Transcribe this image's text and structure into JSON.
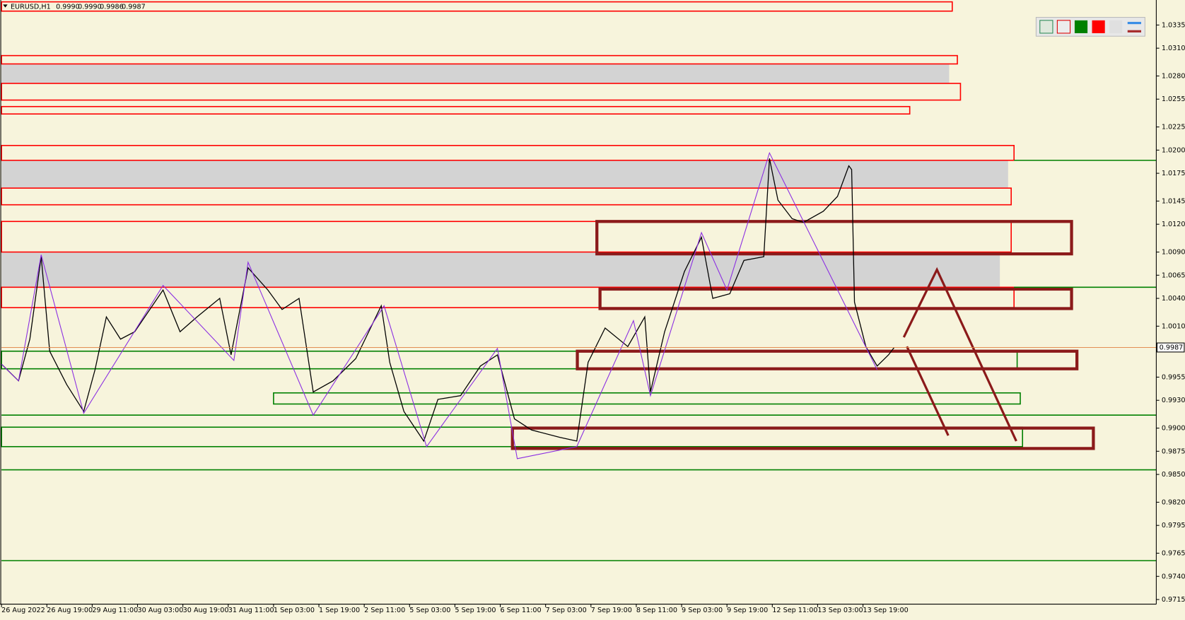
{
  "chart_data": {
    "type": "line",
    "symbol": "EURUSD,H1",
    "ohlc": [
      "0.9990",
      "0.9990",
      "0.9986",
      "0.9987"
    ],
    "xlim": [
      0,
      407.5
    ],
    "ylim": [
      0.971,
      1.0362
    ],
    "xticks": [
      {
        "value": 0,
        "label": "26 Aug 2022"
      },
      {
        "value": 16,
        "label": "26 Aug 19:00"
      },
      {
        "value": 32,
        "label": "29 Aug 11:00"
      },
      {
        "value": 48,
        "label": "30 Aug 03:00"
      },
      {
        "value": 64,
        "label": "30 Aug 19:00"
      },
      {
        "value": 80,
        "label": "31 Aug 11:00"
      },
      {
        "value": 96,
        "label": "1 Sep 03:00"
      },
      {
        "value": 112,
        "label": "1 Sep 19:00"
      },
      {
        "value": 128,
        "label": "2 Sep 11:00"
      },
      {
        "value": 144,
        "label": "5 Sep 03:00"
      },
      {
        "value": 160,
        "label": "5 Sep 19:00"
      },
      {
        "value": 176,
        "label": "6 Sep 11:00"
      },
      {
        "value": 192,
        "label": "7 Sep 03:00"
      },
      {
        "value": 208,
        "label": "7 Sep 19:00"
      },
      {
        "value": 224,
        "label": "8 Sep 11:00"
      },
      {
        "value": 240,
        "label": "9 Sep 03:00"
      },
      {
        "value": 256,
        "label": "9 Sep 19:00"
      },
      {
        "value": 272,
        "label": "12 Sep 11:00"
      },
      {
        "value": 288,
        "label": "13 Sep 03:00"
      },
      {
        "value": 304,
        "label": "13 Sep 19:00"
      }
    ],
    "yticks": [
      1.0335,
      {
        "value": 1.031,
        "label": "1.0310"
      },
      {
        "value": 1.028,
        "label": "1.0280"
      },
      1.0255,
      1.0225,
      {
        "value": 1.02,
        "label": "1.0200"
      },
      1.0175,
      1.0145,
      {
        "value": 1.012,
        "label": "1.0120"
      },
      {
        "value": 1.009,
        "label": "1.0090"
      },
      1.0065,
      {
        "value": 1.004,
        "label": "1.0040"
      },
      {
        "value": 1.001,
        "label": "1.0010"
      },
      0.9955,
      {
        "value": 0.993,
        "label": "0.9930"
      },
      {
        "value": 0.99,
        "label": "0.9900"
      },
      0.9875,
      {
        "value": 0.985,
        "label": "0.9850"
      },
      {
        "value": 0.982,
        "label": "0.9820"
      },
      0.9795,
      0.9765,
      {
        "value": 0.974,
        "label": "0.9740"
      },
      0.9715
    ],
    "last_price": 0.9987,
    "series": [
      {
        "color": "#000000",
        "x": [
          0,
          6,
          10,
          14,
          17,
          23,
          29,
          33,
          37,
          42,
          47,
          57,
          63,
          69,
          77,
          81,
          87,
          94,
          99,
          105,
          110,
          117,
          125,
          134,
          137,
          142,
          149,
          154,
          162,
          169,
          175,
          181,
          187,
          197,
          203,
          207,
          213,
          221,
          227,
          229,
          234,
          241,
          247,
          251,
          257,
          262,
          269,
          271,
          274,
          279,
          283,
          290,
          295,
          299,
          300,
          301,
          305,
          309,
          313,
          315
        ],
        "values": [
          0.9969,
          0.9951,
          0.9996,
          1.0085,
          0.9983,
          0.9947,
          0.9918,
          0.9963,
          1.002,
          0.9996,
          1.0004,
          1.0049,
          1.0004,
          1.002,
          1.004,
          0.9979,
          1.0073,
          1.0049,
          1.0028,
          1.004,
          0.9939,
          0.9951,
          0.9975,
          1.0032,
          0.9971,
          0.9918,
          0.9886,
          0.9931,
          0.9935,
          0.9967,
          0.9979,
          0.991,
          0.9898,
          0.989,
          0.9886,
          0.9971,
          1.0008,
          0.9988,
          1.002,
          0.9939,
          1.0004,
          1.0069,
          1.0106,
          1.004,
          1.0045,
          1.0081,
          1.0085,
          1.0191,
          1.0146,
          1.0126,
          1.0122,
          1.0134,
          1.015,
          1.0183,
          1.0179,
          1.0036,
          0.9988,
          0.9967,
          0.9979,
          0.9987
        ]
      },
      {
        "color": "#8a2be2",
        "x": [
          0,
          6,
          14,
          29,
          57,
          82,
          87,
          110,
          135,
          150,
          175,
          182,
          203,
          223,
          229,
          247,
          256,
          271,
          309
        ],
        "values": [
          0.9969,
          0.9951,
          1.0087,
          0.9916,
          1.0054,
          0.9973,
          1.0079,
          0.9914,
          1.0032,
          0.988,
          0.9986,
          0.9867,
          0.988,
          1.0016,
          0.9935,
          1.0111,
          1.0049,
          1.0197,
          0.9963
        ]
      }
    ],
    "zones": [
      {
        "style": "red",
        "x": [
          0,
          335.5
        ],
        "low": 1.035,
        "high": 1.036
      },
      {
        "style": "red",
        "x": [
          0,
          337.3
        ],
        "low": 1.0293,
        "high": 1.0302
      },
      {
        "style": "gray",
        "x": [
          0,
          334.4
        ],
        "low": 1.0272,
        "high": 1.0293
      },
      {
        "style": "red",
        "x": [
          0,
          338.4
        ],
        "low": 1.0254,
        "high": 1.0272
      },
      {
        "style": "red",
        "x": [
          0,
          320.5
        ],
        "low": 1.0239,
        "high": 1.0247
      },
      {
        "style": "red",
        "x": [
          0,
          357.3
        ],
        "low": 1.0189,
        "high": 1.0205
      },
      {
        "style": "gray",
        "x": [
          0,
          355.2
        ],
        "low": 1.0159,
        "high": 1.0189
      },
      {
        "style": "red",
        "x": [
          0,
          356.3
        ],
        "low": 1.0141,
        "high": 1.0159
      },
      {
        "style": "red",
        "x": [
          0,
          356.3
        ],
        "low": 1.009,
        "high": 1.0123
      },
      {
        "style": "gray",
        "x": [
          0,
          352.3
        ],
        "low": 1.0052,
        "high": 1.009
      },
      {
        "style": "red",
        "x": [
          0,
          357.3
        ],
        "low": 1.003,
        "high": 1.0052
      },
      {
        "style": "green",
        "x": [
          0,
          358.4
        ],
        "low": 0.9964,
        "high": 0.9983
      },
      {
        "style": "green",
        "x": [
          96,
          359.5
        ],
        "low": 0.9926,
        "high": 0.9938
      },
      {
        "style": "green",
        "x": [
          0,
          360.3
        ],
        "low": 0.988,
        "high": 0.9901
      },
      {
        "style": "maroon",
        "x": [
          210.1,
          377.6
        ],
        "low": 1.0088,
        "high": 1.0123
      },
      {
        "style": "maroon",
        "x": [
          211.2,
          377.6
        ],
        "low": 1.0029,
        "high": 1.005
      },
      {
        "style": "maroon",
        "x": [
          203.2,
          379.5
        ],
        "low": 0.9964,
        "high": 0.9983
      },
      {
        "style": "maroon",
        "x": [
          180.3,
          385.3
        ],
        "low": 0.9878,
        "high": 0.99
      }
    ],
    "levels": [
      {
        "value": 1.0189,
        "x": [
          357.3,
          407.5
        ]
      },
      {
        "value": 1.0052,
        "x": [
          357.3,
          407.5
        ]
      },
      {
        "value": 0.9914,
        "x": [
          0,
          407.5
        ]
      },
      {
        "value": 0.9855,
        "x": [
          0,
          407.5
        ]
      },
      {
        "value": 0.9757,
        "x": [
          0,
          407.5
        ]
      }
    ],
    "arrows": [
      {
        "x": [
          318.4,
          330.1,
          358.1
        ],
        "values": [
          0.9998,
          1.0071,
          0.9886
        ]
      },
      {
        "x": [
          319.5,
          334.1
        ],
        "values": [
          0.9988,
          0.9892
        ]
      }
    ]
  }
}
